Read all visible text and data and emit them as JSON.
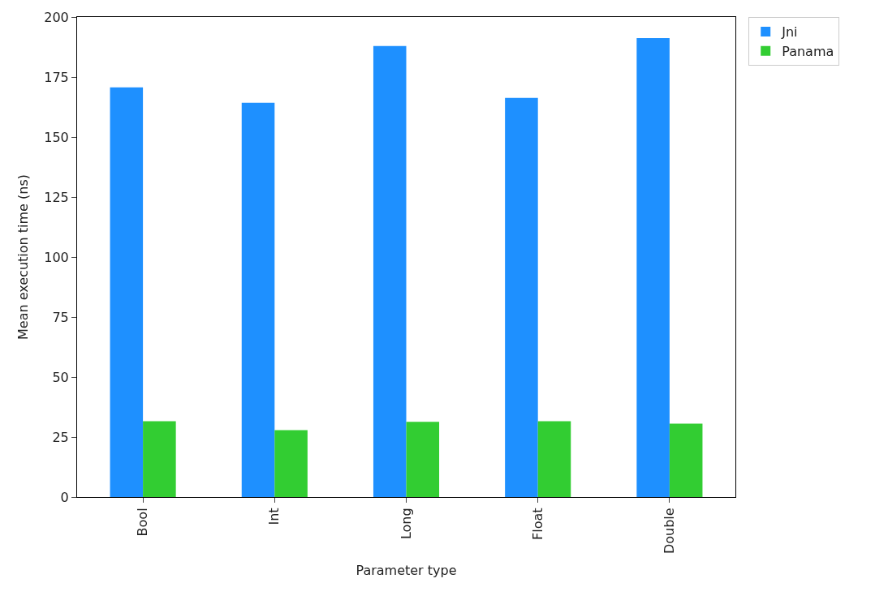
{
  "chart_data": {
    "type": "bar",
    "xlabel": "Parameter type",
    "ylabel": "Mean execution time (ns)",
    "categories": [
      "Bool",
      "Int",
      "Long",
      "Float",
      "Double"
    ],
    "series": [
      {
        "name": "Jni",
        "color": "#1e90ff",
        "values": [
          170.7,
          164.3,
          187.9,
          166.3,
          191.2
        ]
      },
      {
        "name": "Panama",
        "color": "#32cd32",
        "values": [
          31.6,
          27.9,
          31.3,
          31.6,
          30.6
        ]
      }
    ],
    "ylim": [
      0,
      200
    ],
    "yticks": [
      0,
      25,
      50,
      75,
      100,
      125,
      150,
      175,
      200
    ],
    "grid": false,
    "legend": "top right"
  }
}
